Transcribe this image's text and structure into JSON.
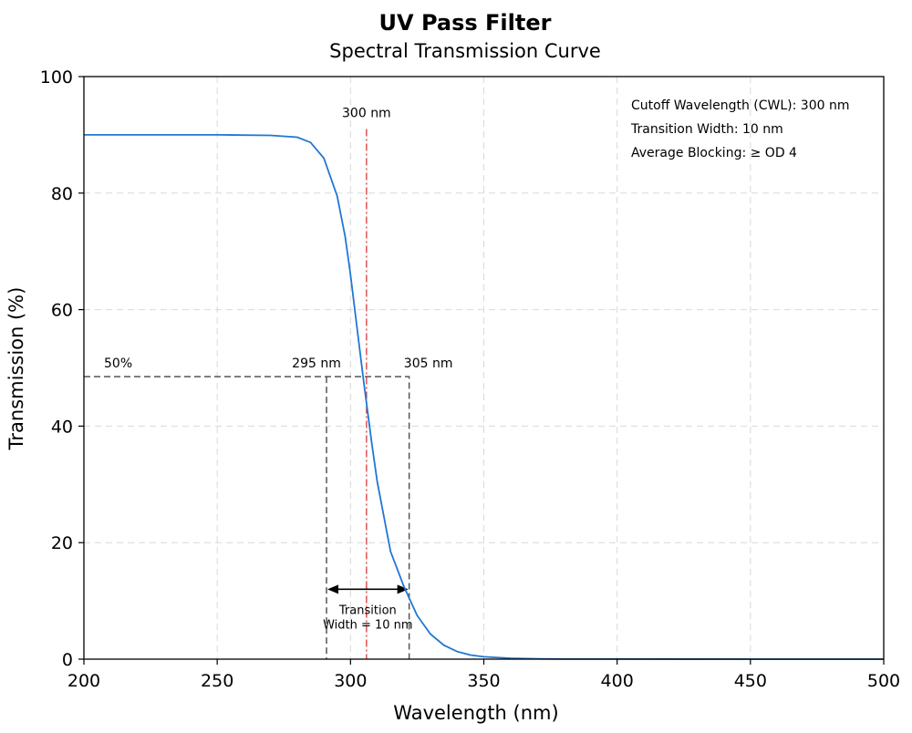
{
  "chart_data": {
    "type": "line",
    "title": "UV Pass Filter",
    "subtitle": "Spectral Transmission Curve",
    "xlabel": "Wavelength (nm)",
    "ylabel": "Transmission (%)",
    "xlim": [
      200,
      500
    ],
    "ylim": [
      0,
      100
    ],
    "xticks": [
      200,
      250,
      300,
      350,
      400,
      450,
      500
    ],
    "yticks": [
      0,
      20,
      40,
      60,
      80,
      100
    ],
    "grid": true,
    "series": [
      {
        "color": "#1f77d4",
        "x": [
          200,
          250,
          270,
          280,
          285,
          290,
          295,
          298,
          300,
          302,
          305,
          308,
          310,
          315,
          320,
          325,
          330,
          335,
          340,
          345,
          350,
          360,
          370,
          380,
          400,
          450,
          500
        ],
        "y": [
          90,
          90,
          89.9,
          89.6,
          88.7,
          86.0,
          79.5,
          72.5,
          66.0,
          58.5,
          47.5,
          37.0,
          30.5,
          18.5,
          12.5,
          7.5,
          4.3,
          2.4,
          1.3,
          0.7,
          0.4,
          0.15,
          0.06,
          0.02,
          0.01,
          0.0,
          0.0
        ]
      }
    ],
    "annotations": {
      "cwl_label": "300 nm",
      "cwl_x": 306,
      "half_label": "50%",
      "half_level": 48.5,
      "lower_label": "295 nm",
      "lower_x": 291,
      "upper_label": "305 nm",
      "upper_x": 322,
      "arrow_level": 12,
      "transition_line1": "Transition",
      "transition_line2": "Width = 10 nm"
    },
    "info_box": [
      "Cutoff Wavelength (CWL): 300 nm",
      "Transition Width: 10 nm",
      "Average Blocking: ≥ OD 4"
    ],
    "colors": {
      "curve": "#1f77d4",
      "cwl_line": "#d62728",
      "reference_lines": "#555555",
      "grid": "#d9d9d9"
    }
  }
}
